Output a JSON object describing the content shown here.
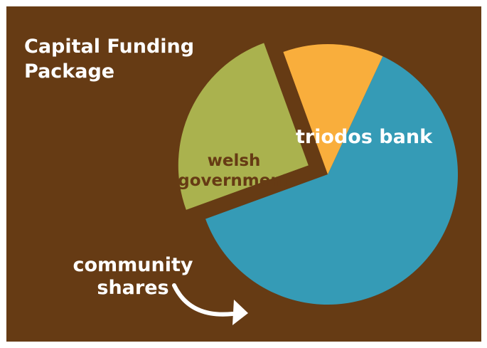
{
  "chart_data": {
    "type": "pie",
    "title_lines": [
      "Capital Funding",
      "Package"
    ],
    "slices": [
      {
        "label_lines": [
          "triodos bank"
        ],
        "value": 62.5,
        "color": "#359bb6",
        "label_color": "#ffffff",
        "exploded": false
      },
      {
        "label_lines": [
          "community",
          "shares"
        ],
        "value": 25.0,
        "color": "#aab24e",
        "label_color": "#ffffff",
        "exploded": true
      },
      {
        "label_lines": [
          "welsh",
          "government"
        ],
        "value": 12.5,
        "color": "#f9ae3c",
        "label_color": "#663b14",
        "exploded": false
      }
    ],
    "start_angle_deg": 25,
    "annotation": "curved arrow from community shares label to its slice",
    "background_color": "#663b14",
    "legend": "none"
  }
}
